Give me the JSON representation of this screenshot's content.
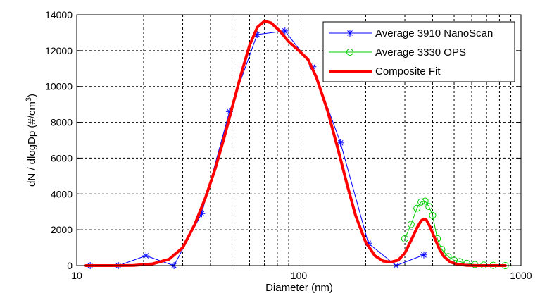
{
  "chart_data": {
    "type": "line",
    "xscale": "log",
    "xlim": [
      10,
      1000
    ],
    "ylim": [
      0,
      14000
    ],
    "xlabel": "Diameter (nm)",
    "ylabel_main": "dN / dlogDp (#/cm",
    "ylabel_sup": "3",
    "ylabel_end": ")",
    "grid": true,
    "legend_position": "top-right",
    "x_ticks": [
      10,
      100,
      1000
    ],
    "x_tick_labels": [
      "10",
      "100",
      "1000"
    ],
    "y_ticks": [
      0,
      2000,
      4000,
      6000,
      8000,
      10000,
      12000,
      14000
    ],
    "y_tick_labels": [
      "0",
      "2000",
      "4000",
      "6000",
      "8000",
      "10000",
      "12000",
      "14000"
    ],
    "series": [
      {
        "name": "Average 3910 NanoScan",
        "color": "#0000ff",
        "marker": "asterisk",
        "linewidth": 1,
        "points": [
          [
            11.5,
            0
          ],
          [
            15.4,
            0
          ],
          [
            20.5,
            550
          ],
          [
            27.4,
            0
          ],
          [
            36.5,
            2900
          ],
          [
            48.7,
            8600
          ],
          [
            64.9,
            12900
          ],
          [
            86.6,
            13100
          ],
          [
            115.5,
            11100
          ],
          [
            154.0,
            6850
          ],
          [
            205.4,
            1250
          ],
          [
            273.8,
            0
          ],
          [
            365.2,
            600
          ]
        ]
      },
      {
        "name": "Average 3330 OPS",
        "color": "#00cc00",
        "marker": "circle",
        "linewidth": 1,
        "points": [
          [
            300,
            1500
          ],
          [
            320,
            2300
          ],
          [
            340,
            3200
          ],
          [
            355,
            3550
          ],
          [
            370,
            3600
          ],
          [
            385,
            3300
          ],
          [
            400,
            2800
          ],
          [
            420,
            1500
          ],
          [
            440,
            900
          ],
          [
            470,
            500
          ],
          [
            500,
            300
          ],
          [
            530,
            220
          ],
          [
            570,
            130
          ],
          [
            620,
            60
          ],
          [
            680,
            30
          ],
          [
            750,
            15
          ],
          [
            850,
            0
          ]
        ]
      },
      {
        "name": "Composite Fit",
        "color": "#ff0000",
        "marker": "none",
        "linewidth": 4,
        "points": [
          [
            11,
            0
          ],
          [
            15,
            0
          ],
          [
            18,
            10
          ],
          [
            22,
            100
          ],
          [
            26,
            350
          ],
          [
            30,
            1000
          ],
          [
            34,
            2300
          ],
          [
            38,
            3800
          ],
          [
            42,
            5400
          ],
          [
            46,
            7100
          ],
          [
            50,
            8800
          ],
          [
            55,
            10700
          ],
          [
            60,
            12300
          ],
          [
            65,
            13300
          ],
          [
            70,
            13650
          ],
          [
            75,
            13550
          ],
          [
            82,
            13100
          ],
          [
            90,
            12500
          ],
          [
            100,
            12000
          ],
          [
            110,
            11500
          ],
          [
            120,
            10500
          ],
          [
            135,
            8600
          ],
          [
            150,
            6500
          ],
          [
            165,
            4500
          ],
          [
            180,
            2800
          ],
          [
            200,
            1300
          ],
          [
            220,
            550
          ],
          [
            240,
            250
          ],
          [
            260,
            200
          ],
          [
            280,
            300
          ],
          [
            300,
            700
          ],
          [
            320,
            1400
          ],
          [
            340,
            2100
          ],
          [
            355,
            2500
          ],
          [
            365,
            2600
          ],
          [
            375,
            2550
          ],
          [
            390,
            2150
          ],
          [
            410,
            1500
          ],
          [
            430,
            900
          ],
          [
            450,
            500
          ],
          [
            480,
            200
          ],
          [
            520,
            60
          ],
          [
            580,
            10
          ],
          [
            650,
            0
          ],
          [
            750,
            0
          ],
          [
            850,
            0
          ]
        ]
      }
    ]
  }
}
